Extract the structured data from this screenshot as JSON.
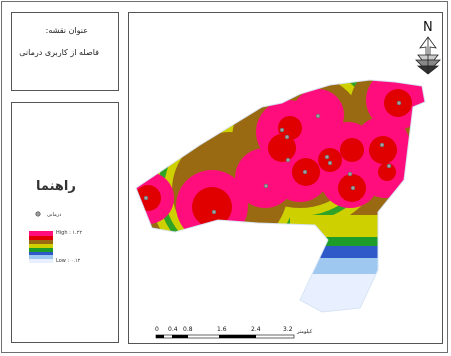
{
  "title": {
    "label": "عنوان نقشه:",
    "subtitle": "فاصله از کاربری درمانی"
  },
  "legend": {
    "heading": "راهنما",
    "point_label": "درمانی",
    "high_label": "High : ۱.۲۲",
    "low_label": "Low : ۰.۱۲",
    "ramp_colors": [
      "#ff0d7c",
      "#e00000",
      "#9a6a12",
      "#cfd000",
      "#1e9c2a",
      "#2f58c8",
      "#9ec8ef",
      "#e8f0ff"
    ]
  },
  "north_arrow": {
    "letter": "N"
  },
  "scale_bar": {
    "ticks": [
      "0",
      "0.4",
      "0.8",
      "1.6",
      "2.4",
      "3.2"
    ],
    "unit": "کیلومتر"
  },
  "colors": {
    "magenta": "#ff0d7c",
    "red": "#e00000",
    "brown": "#9a6a12",
    "yellow": "#cfd000",
    "green": "#1e9c2a",
    "blue": "#2f58c8",
    "light_blue": "#9ec8ef",
    "pale": "#e8f0ff"
  }
}
